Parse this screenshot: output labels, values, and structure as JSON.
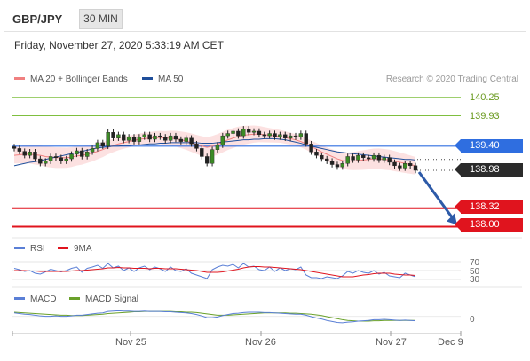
{
  "header": {
    "pair": "GBP/JPY",
    "timeframe": "30 MIN",
    "datetime": "Friday, November 27, 2020 5:33:19 AM CET"
  },
  "legend": {
    "ma20_bb": "MA 20 + Bollinger Bands",
    "ma50": "MA 50",
    "copyright": "Research © 2020 Trading Central",
    "rsi": "RSI",
    "rsi_ma": "9MA",
    "macd": "MACD",
    "macd_signal": "MACD Signal"
  },
  "colors": {
    "ma20": "#f08080",
    "ma50": "#1f4e9a",
    "bb_band": "#fcdcdc",
    "resistance": "#7fbf3f",
    "support": "#e0141e",
    "pivot": "#2f6ee0",
    "last_price": "#2b2b2b",
    "arrow": "#2d5aa8",
    "rsi": "#5a7fd6",
    "rsi_ma": "#e0141e",
    "macd": "#5a7fd6",
    "macd_signal": "#6aa12a"
  },
  "levels": {
    "r2": "140.25",
    "r1": "139.93",
    "pivot": "139.40",
    "last": "138.98",
    "s1": "138.32",
    "s2": "138.00"
  },
  "indicators": {
    "rsi_ticks": [
      "70",
      "50",
      "30"
    ],
    "macd_tick": "0"
  },
  "x_axis": {
    "labels": [
      "Nov 25",
      "Nov 26",
      "Nov 27",
      "Dec 9"
    ]
  },
  "chart_data": {
    "type": "line",
    "title": "GBP/JPY",
    "ylim": [
      137.9,
      140.4
    ],
    "series": [
      {
        "name": "price",
        "values": [
          139.36,
          139.31,
          139.24,
          139.3,
          139.18,
          139.1,
          139.14,
          139.22,
          139.2,
          139.14,
          139.18,
          139.26,
          139.32,
          139.22,
          139.3,
          139.36,
          139.46,
          139.4,
          139.64,
          139.54,
          139.6,
          139.5,
          139.56,
          139.48,
          139.56,
          139.6,
          139.52,
          139.58,
          139.56,
          139.5,
          139.58,
          139.52,
          139.48,
          139.54,
          139.44,
          139.36,
          139.22,
          139.1,
          139.34,
          139.42,
          139.58,
          139.62,
          139.66,
          139.58,
          139.7,
          139.64,
          139.66,
          139.6,
          139.58,
          139.62,
          139.56,
          139.6,
          139.54,
          139.58,
          139.56,
          139.62,
          139.44,
          139.3,
          139.24,
          139.18,
          139.14,
          139.08,
          139.04,
          139.1,
          139.22,
          139.16,
          139.24,
          139.2,
          139.18,
          139.24,
          139.16,
          139.2,
          139.12,
          139.06,
          139.02,
          139.1,
          139.06,
          138.98
        ]
      },
      {
        "name": "MA 20",
        "values": [
          139.24,
          139.25,
          139.26,
          139.26,
          139.25,
          139.24,
          139.22,
          139.21,
          139.2,
          139.2,
          139.2,
          139.21,
          139.23,
          139.24,
          139.26,
          139.28,
          139.31,
          139.34,
          139.38,
          139.41,
          139.44,
          139.46,
          139.48,
          139.5,
          139.52,
          139.53,
          139.54,
          139.55,
          139.55,
          139.54,
          139.54,
          139.53,
          139.51,
          139.49,
          139.46,
          139.43,
          139.4,
          139.38,
          139.4,
          139.43,
          139.47,
          139.51,
          139.54,
          139.57,
          139.59,
          139.6,
          139.61,
          139.61,
          139.6,
          139.59,
          139.58,
          139.57,
          139.55,
          139.53,
          139.51,
          139.48,
          139.44,
          139.39,
          139.35,
          139.3,
          139.26,
          139.22,
          139.18,
          139.15,
          139.14,
          139.14,
          139.15,
          139.16,
          139.17,
          139.18,
          139.18,
          139.17,
          139.16,
          139.14,
          139.12,
          139.1,
          139.08,
          139.06
        ]
      },
      {
        "name": "MA 50",
        "values": [
          139.06,
          139.08,
          139.1,
          139.12,
          139.13,
          139.15,
          139.17,
          139.19,
          139.21,
          139.23,
          139.25,
          139.27,
          139.29,
          139.31,
          139.33,
          139.35,
          139.37,
          139.38,
          139.39,
          139.4,
          139.4,
          139.41,
          139.41,
          139.42,
          139.42,
          139.43,
          139.44,
          139.44,
          139.45,
          139.45,
          139.46,
          139.46,
          139.46,
          139.46,
          139.46,
          139.46,
          139.45,
          139.45,
          139.45,
          139.46,
          139.47,
          139.48,
          139.49,
          139.5,
          139.51,
          139.51,
          139.52,
          139.52,
          139.53,
          139.53,
          139.53,
          139.52,
          139.51,
          139.49,
          139.47,
          139.45,
          139.42,
          139.4,
          139.38,
          139.36,
          139.34,
          139.32,
          139.3,
          139.29,
          139.28,
          139.27,
          139.26,
          139.25,
          139.24,
          139.23,
          139.22,
          139.21,
          139.2,
          139.19,
          139.18,
          139.17,
          139.17,
          139.16
        ]
      }
    ],
    "rsi": {
      "ylim": [
        20,
        80
      ],
      "rsi": [
        55,
        52,
        48,
        50,
        44,
        42,
        47,
        53,
        50,
        47,
        50,
        55,
        58,
        46,
        55,
        58,
        62,
        55,
        66,
        56,
        60,
        50,
        56,
        48,
        56,
        60,
        52,
        58,
        54,
        48,
        58,
        50,
        48,
        54,
        44,
        40,
        36,
        32,
        52,
        58,
        62,
        60,
        64,
        56,
        66,
        58,
        60,
        52,
        50,
        58,
        48,
        56,
        50,
        54,
        52,
        58,
        40,
        34,
        34,
        32,
        36,
        34,
        32,
        38,
        48,
        44,
        50,
        46,
        44,
        50,
        42,
        46,
        38,
        36,
        34,
        44,
        40,
        36
      ],
      "ma": [
        50,
        50,
        50,
        49,
        49,
        48,
        48,
        48,
        48,
        48,
        48,
        49,
        50,
        50,
        51,
        52,
        53,
        54,
        56,
        56,
        57,
        56,
        56,
        55,
        55,
        55,
        54,
        55,
        55,
        54,
        54,
        54,
        53,
        52,
        51,
        50,
        48,
        46,
        46,
        46,
        47,
        49,
        51,
        53,
        56,
        58,
        59,
        59,
        58,
        58,
        57,
        56,
        55,
        54,
        53,
        52,
        50,
        48,
        46,
        44,
        42,
        40,
        38,
        36,
        36,
        36,
        38,
        40,
        41,
        43,
        44,
        44,
        44,
        42,
        41,
        40,
        40,
        39
      ]
    },
    "macd": {
      "ylim": [
        -0.4,
        0.3
      ],
      "macd": [
        0.1,
        0.08,
        0.06,
        0.05,
        0.03,
        0.01,
        0.0,
        0.0,
        0.01,
        0.0,
        0.0,
        0.01,
        0.03,
        0.03,
        0.05,
        0.07,
        0.09,
        0.1,
        0.14,
        0.15,
        0.16,
        0.15,
        0.15,
        0.14,
        0.14,
        0.15,
        0.14,
        0.14,
        0.14,
        0.13,
        0.13,
        0.12,
        0.11,
        0.1,
        0.08,
        0.05,
        0.01,
        -0.04,
        -0.04,
        -0.02,
        0.02,
        0.05,
        0.08,
        0.09,
        0.11,
        0.12,
        0.12,
        0.12,
        0.11,
        0.11,
        0.1,
        0.09,
        0.08,
        0.07,
        0.06,
        0.06,
        0.03,
        -0.01,
        -0.05,
        -0.08,
        -0.12,
        -0.15,
        -0.18,
        -0.19,
        -0.17,
        -0.16,
        -0.14,
        -0.13,
        -0.12,
        -0.1,
        -0.1,
        -0.09,
        -0.1,
        -0.11,
        -0.12,
        -0.11,
        -0.12,
        -0.13
      ],
      "signal": [
        0.12,
        0.11,
        0.1,
        0.09,
        0.08,
        0.07,
        0.06,
        0.05,
        0.04,
        0.03,
        0.03,
        0.02,
        0.02,
        0.02,
        0.03,
        0.04,
        0.05,
        0.06,
        0.08,
        0.09,
        0.1,
        0.11,
        0.12,
        0.13,
        0.13,
        0.14,
        0.14,
        0.14,
        0.14,
        0.14,
        0.14,
        0.13,
        0.13,
        0.12,
        0.12,
        0.11,
        0.09,
        0.07,
        0.05,
        0.03,
        0.03,
        0.03,
        0.04,
        0.05,
        0.06,
        0.07,
        0.08,
        0.09,
        0.1,
        0.1,
        0.1,
        0.1,
        0.1,
        0.09,
        0.09,
        0.08,
        0.07,
        0.06,
        0.04,
        0.02,
        -0.01,
        -0.04,
        -0.07,
        -0.1,
        -0.12,
        -0.13,
        -0.14,
        -0.14,
        -0.14,
        -0.13,
        -0.13,
        -0.12,
        -0.12,
        -0.12,
        -0.12,
        -0.12,
        -0.12,
        -0.12
      ]
    }
  }
}
